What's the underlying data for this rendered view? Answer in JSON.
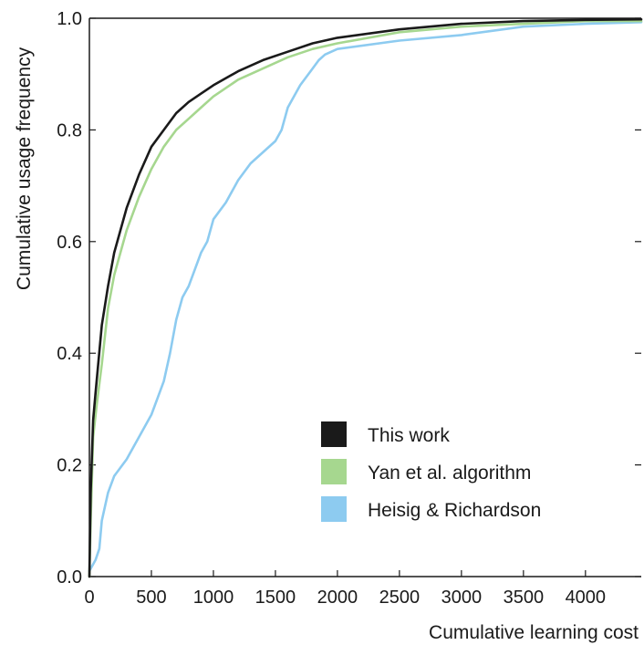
{
  "chart_data": {
    "type": "line",
    "title": "",
    "xlabel": "Cumulative learning cost",
    "ylabel": "Cumulative usage frequency",
    "xlim": [
      0,
      4450
    ],
    "ylim": [
      0,
      1.0
    ],
    "x_ticks": [
      0,
      500,
      1000,
      1500,
      2000,
      2500,
      3000,
      3500,
      4000
    ],
    "y_ticks": [
      0.0,
      0.2,
      0.4,
      0.6,
      0.8,
      1.0
    ],
    "x_tick_labels": [
      "0",
      "500",
      "1000",
      "1500",
      "2000",
      "2500",
      "3000",
      "3500",
      "4000"
    ],
    "y_tick_labels": [
      "0.0",
      "0.2",
      "0.4",
      "0.6",
      "0.8",
      "1.0"
    ],
    "grid": false,
    "legend_position": "bottom-right",
    "series": [
      {
        "name": "This work",
        "color": "#1a1a1a",
        "x": [
          0,
          10,
          30,
          50,
          100,
          150,
          200,
          300,
          400,
          500,
          600,
          700,
          800,
          900,
          1000,
          1200,
          1400,
          1600,
          1800,
          2000,
          2500,
          3000,
          3500,
          4000,
          4450
        ],
        "y": [
          0,
          0.15,
          0.28,
          0.33,
          0.45,
          0.52,
          0.58,
          0.66,
          0.72,
          0.77,
          0.8,
          0.83,
          0.85,
          0.865,
          0.88,
          0.905,
          0.925,
          0.94,
          0.955,
          0.965,
          0.98,
          0.99,
          0.995,
          0.997,
          0.998
        ]
      },
      {
        "name": "Yan et al. algorithm",
        "color": "#a6d78f",
        "x": [
          0,
          10,
          30,
          60,
          100,
          150,
          200,
          300,
          400,
          500,
          600,
          700,
          800,
          900,
          1000,
          1200,
          1400,
          1600,
          1800,
          2000,
          2500,
          3000,
          3500,
          4000,
          4450
        ],
        "y": [
          0,
          0.1,
          0.25,
          0.31,
          0.38,
          0.48,
          0.54,
          0.62,
          0.68,
          0.73,
          0.77,
          0.8,
          0.82,
          0.84,
          0.86,
          0.89,
          0.91,
          0.93,
          0.945,
          0.955,
          0.975,
          0.985,
          0.99,
          0.995,
          0.995
        ]
      },
      {
        "name": "Heisig & Richardson",
        "color": "#8dcbf0",
        "x": [
          0,
          50,
          80,
          100,
          150,
          200,
          300,
          400,
          500,
          550,
          600,
          650,
          700,
          750,
          800,
          850,
          900,
          950,
          1000,
          1100,
          1200,
          1300,
          1400,
          1500,
          1550,
          1600,
          1700,
          1800,
          1850,
          1900,
          2000,
          2500,
          3000,
          3500,
          4000,
          4450
        ],
        "y": [
          0.01,
          0.03,
          0.05,
          0.1,
          0.15,
          0.18,
          0.21,
          0.25,
          0.29,
          0.32,
          0.35,
          0.4,
          0.46,
          0.5,
          0.52,
          0.55,
          0.58,
          0.6,
          0.64,
          0.67,
          0.71,
          0.74,
          0.76,
          0.78,
          0.8,
          0.84,
          0.88,
          0.91,
          0.925,
          0.935,
          0.945,
          0.96,
          0.97,
          0.985,
          0.99,
          0.993
        ]
      }
    ]
  }
}
